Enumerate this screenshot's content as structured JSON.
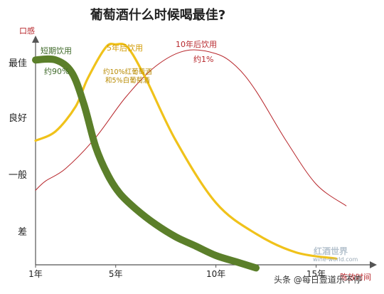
{
  "chart_data": {
    "type": "line",
    "title": "葡萄酒什么时候喝最佳?",
    "ylabel": "口感",
    "xlabel": "陈放时间",
    "y_categories": [
      "差",
      "一般",
      "良好",
      "最佳"
    ],
    "x_ticks": [
      {
        "value": 1,
        "label": "1年"
      },
      {
        "value": 5,
        "label": "5年"
      },
      {
        "value": 10,
        "label": "10年"
      },
      {
        "value": 15,
        "label": "15年"
      }
    ],
    "xlim": [
      1,
      17.5
    ],
    "ylim": [
      0,
      3.6
    ],
    "series": [
      {
        "name": "短期饮用",
        "color": "#5b7f2a",
        "x": [
          1,
          2,
          2.8,
          3.4,
          4,
          4.6,
          5.2,
          6,
          7,
          8,
          9,
          10,
          11,
          12
        ],
        "y": [
          3.3,
          3.3,
          3.1,
          2.6,
          1.9,
          1.45,
          1.15,
          0.9,
          0.65,
          0.45,
          0.3,
          0.15,
          0.05,
          -0.05
        ]
      },
      {
        "name": "5年后饮用",
        "color": "#f0c21a",
        "x": [
          1,
          2,
          3,
          3.6,
          4.5,
          5,
          5.6,
          6.5,
          8,
          10,
          12,
          14,
          16
        ],
        "y": [
          2.0,
          2.15,
          2.55,
          3.0,
          3.5,
          3.55,
          3.5,
          3.0,
          2.0,
          1.0,
          0.5,
          0.2,
          0.1
        ]
      },
      {
        "name": "10年后饮用",
        "color": "#b7262b",
        "x": [
          1,
          1.5,
          2.5,
          4,
          5.5,
          7,
          8.5,
          10,
          11,
          12,
          13.5,
          15,
          16.5
        ],
        "y": [
          1.2,
          1.35,
          1.55,
          2.05,
          2.7,
          3.2,
          3.45,
          3.4,
          3.2,
          2.8,
          2.0,
          1.3,
          0.95
        ]
      }
    ],
    "annotations": {
      "green": [
        "短期饮用",
        "约90%"
      ],
      "yellow": [
        "5年后饮用",
        "约10%红葡萄酒",
        "和5%白葡萄酒"
      ],
      "red": [
        "10年后饮用",
        "约1%"
      ]
    }
  },
  "watermark": {
    "logo": "红酒世界",
    "site": "wine-world.com"
  },
  "credit": "头条 @每日壹道乐不停"
}
